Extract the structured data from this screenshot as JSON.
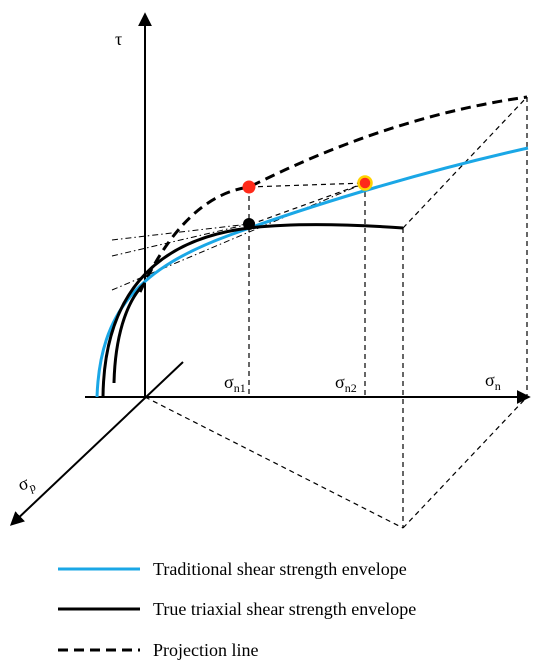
{
  "axes": {
    "tau": "τ",
    "sigma_n": {
      "base": "σ",
      "sub": "n"
    },
    "sigma_n1": {
      "base": "σ",
      "sub": "n1"
    },
    "sigma_n2": {
      "base": "σ",
      "sub": "n2"
    },
    "sigma_p": {
      "base": "σ",
      "sub": "p"
    }
  },
  "legend": [
    {
      "label": "Traditional  shear strength envelope",
      "color": "#1aa7e6",
      "style": "solid"
    },
    {
      "label": "True triaxial shear strength envelope",
      "color": "#000000",
      "style": "solid"
    },
    {
      "label": "Projection line",
      "color": "#000000",
      "style": "dashed"
    }
  ],
  "colors": {
    "traditional": "#1aa7e6",
    "true_triaxial": "#000000",
    "point_red": "#ff2a1a",
    "point_ring": "#ffd200",
    "point_black": "#000000"
  }
}
